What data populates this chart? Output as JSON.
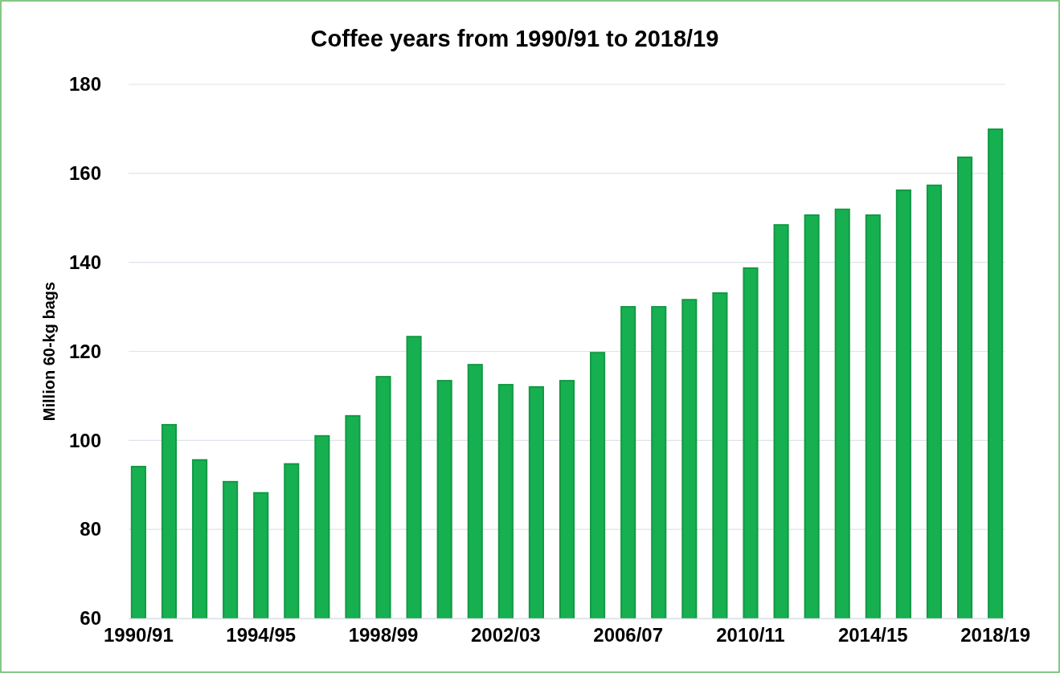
{
  "chart_data": {
    "type": "bar",
    "title": "Coffee years from 1990/91 to 2018/19",
    "ylabel": "Million 60-kg bags",
    "categories": [
      "1990/91",
      null,
      null,
      null,
      "1994/95",
      null,
      null,
      null,
      "1998/99",
      null,
      null,
      null,
      "2002/03",
      null,
      null,
      null,
      "2006/07",
      null,
      null,
      null,
      "2010/11",
      null,
      null,
      null,
      "2014/15",
      null,
      null,
      null,
      "2018/19"
    ],
    "values": [
      94.1,
      103.5,
      95.6,
      90.7,
      88.2,
      94.7,
      101.0,
      105.5,
      114.3,
      123.3,
      113.4,
      117.0,
      112.5,
      112.0,
      113.4,
      119.7,
      130.0,
      130.0,
      131.6,
      133.1,
      138.7,
      148.4,
      150.6,
      151.9,
      150.6,
      156.2,
      157.3,
      163.6,
      169.9
    ],
    "color": "#16b050",
    "ylim": [
      60,
      180
    ],
    "yticks": [
      60,
      80,
      100,
      120,
      140,
      160,
      180
    ],
    "grid": "y"
  }
}
